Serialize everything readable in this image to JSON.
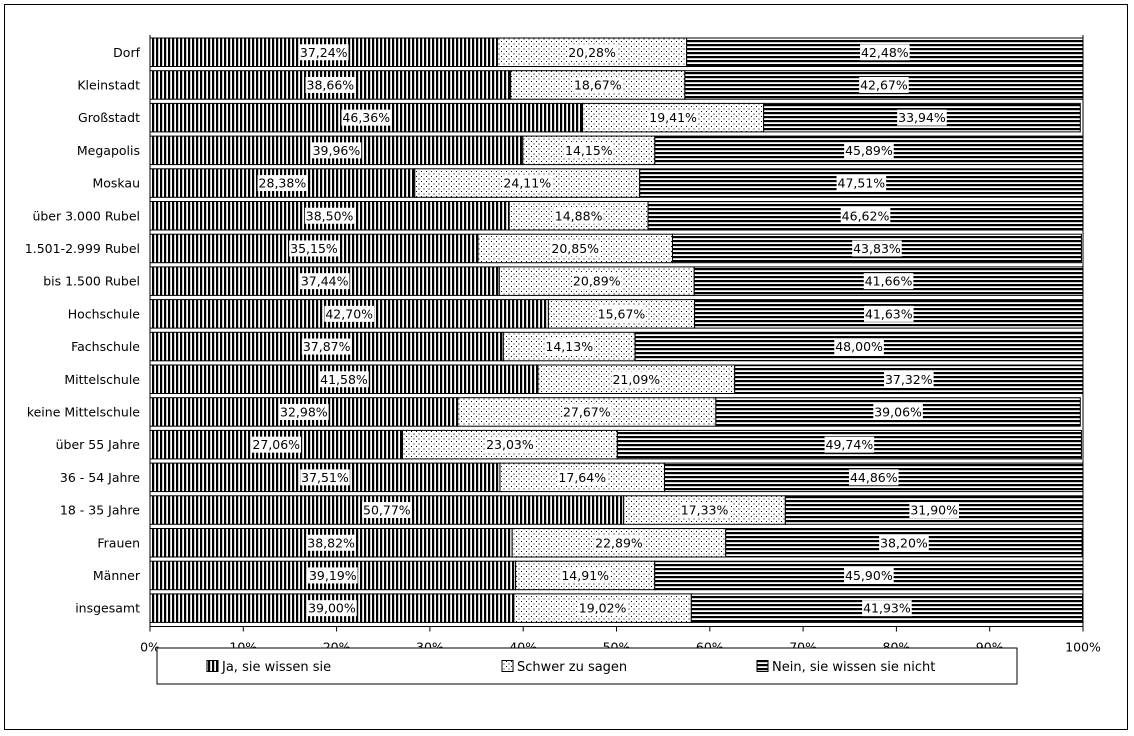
{
  "chart_data": {
    "type": "bar",
    "orientation": "horizontal",
    "stacked": "percent",
    "categories": [
      "Dorf",
      "Kleinstadt",
      "Großstadt",
      "Megapolis",
      "Moskau",
      "über 3.000 Rubel",
      "1.501-2.999 Rubel",
      "bis 1.500 Rubel",
      "Hochschule",
      "Fachschule",
      "Mittelschule",
      "keine Mittelschule",
      "über 55 Jahre",
      "36 - 54 Jahre",
      "18 - 35 Jahre",
      "Frauen",
      "Männer",
      "insgesamt"
    ],
    "series": [
      {
        "name": "Ja, sie wissen sie",
        "pattern": "vertical-stripes",
        "values": [
          37.24,
          38.66,
          46.36,
          39.96,
          28.38,
          38.5,
          35.15,
          37.44,
          42.7,
          37.87,
          41.58,
          32.98,
          27.06,
          37.51,
          50.77,
          38.82,
          39.19,
          39.0
        ],
        "labels": [
          "37,24%",
          "38,66%",
          "46,36%",
          "39,96%",
          "28,38%",
          "38,50%",
          "35,15%",
          "37,44%",
          "42,70%",
          "37,87%",
          "41,58%",
          "32,98%",
          "27,06%",
          "37,51%",
          "50,77%",
          "38,82%",
          "39,19%",
          "39,00%"
        ]
      },
      {
        "name": "Schwer zu sagen",
        "pattern": "dots",
        "values": [
          20.28,
          18.67,
          19.41,
          14.15,
          24.11,
          14.88,
          20.85,
          20.89,
          15.67,
          14.13,
          21.09,
          27.67,
          23.03,
          17.64,
          17.33,
          22.89,
          14.91,
          19.02
        ],
        "labels": [
          "20,28%",
          "18,67%",
          "19,41%",
          "14,15%",
          "24,11%",
          "14,88%",
          "20,85%",
          "20,89%",
          "15,67%",
          "14,13%",
          "21,09%",
          "27,67%",
          "23,03%",
          "17,64%",
          "17,33%",
          "22,89%",
          "14,91%",
          "19,02%"
        ]
      },
      {
        "name": "Nein, sie wissen sie nicht",
        "pattern": "horizontal-stripes",
        "values": [
          42.48,
          42.67,
          33.94,
          45.89,
          47.51,
          46.62,
          43.83,
          41.66,
          41.63,
          48.0,
          37.32,
          39.06,
          49.74,
          44.86,
          31.9,
          38.2,
          45.9,
          41.93
        ],
        "labels": [
          "42,48%",
          "42,67%",
          "33,94%",
          "45,89%",
          "47,51%",
          "46,62%",
          "43,83%",
          "41,66%",
          "41,63%",
          "48,00%",
          "37,32%",
          "39,06%",
          "49,74%",
          "44,86%",
          "31,90%",
          "38,20%",
          "45,90%",
          "41,93%"
        ]
      }
    ],
    "x_ticks": [
      "0%",
      "10%",
      "20%",
      "30%",
      "40%",
      "50%",
      "60%",
      "70%",
      "80%",
      "90%",
      "100%"
    ],
    "xlim": [
      0,
      100
    ],
    "grid": false,
    "legend": "bottom",
    "colors": {
      "ink": "#000000",
      "background": "#ffffff"
    }
  }
}
